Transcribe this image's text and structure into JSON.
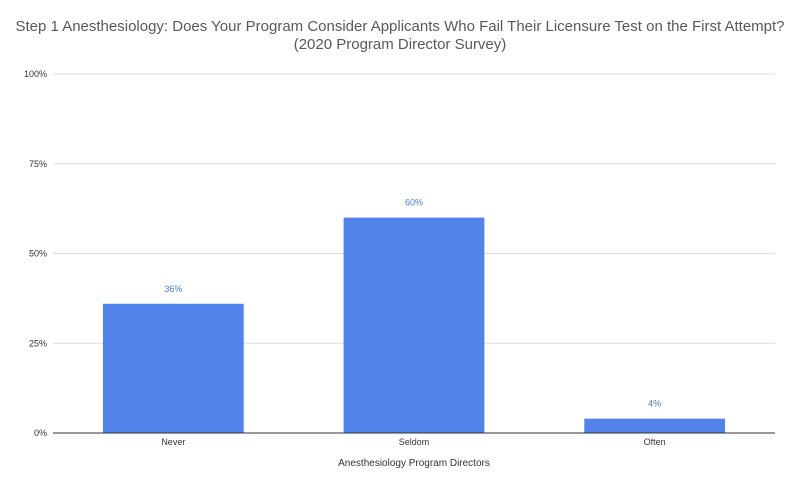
{
  "chart_data": {
    "type": "bar",
    "title": "Step 1 Anesthesiology: Does Your Program Consider Applicants Who Fail Their Licensure Test on the First Attempt? (2020 Program Director Survey)",
    "categories": [
      "Never",
      "Seldom",
      "Often"
    ],
    "values": [
      36,
      60,
      4
    ],
    "data_labels": [
      "36%",
      "60%",
      "4%"
    ],
    "xlabel": "Anesthesiology Program Directors",
    "ylabel": "",
    "ylim": [
      0,
      100
    ],
    "yticks": [
      0,
      25,
      50,
      75,
      100
    ],
    "ytick_labels": [
      "0%",
      "25%",
      "50%",
      "75%",
      "100%"
    ],
    "grid": true,
    "legend": "none",
    "colors": {
      "bar": "#5283eb",
      "data_label": "#4a78d8",
      "grid": "#dedede",
      "axis": "#333333",
      "title": "#595959"
    }
  }
}
